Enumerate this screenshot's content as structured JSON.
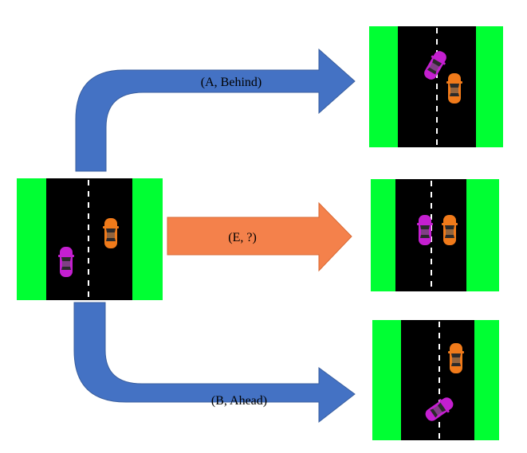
{
  "colors": {
    "grass": "#00ff33",
    "road": "#000000",
    "lane_marking": "#ffffff",
    "arrow_blue": "#4472c4",
    "arrow_orange": "#f4814b",
    "car_purple": "#c41fd0",
    "car_orange": "#f07a1a"
  },
  "arrows": {
    "top_label": "(A, Behind)",
    "middle_label": "(E, ?)",
    "bottom_label": "(B, Ahead)"
  },
  "scenes": [
    "initial",
    "after-A",
    "after-E",
    "after-B"
  ]
}
